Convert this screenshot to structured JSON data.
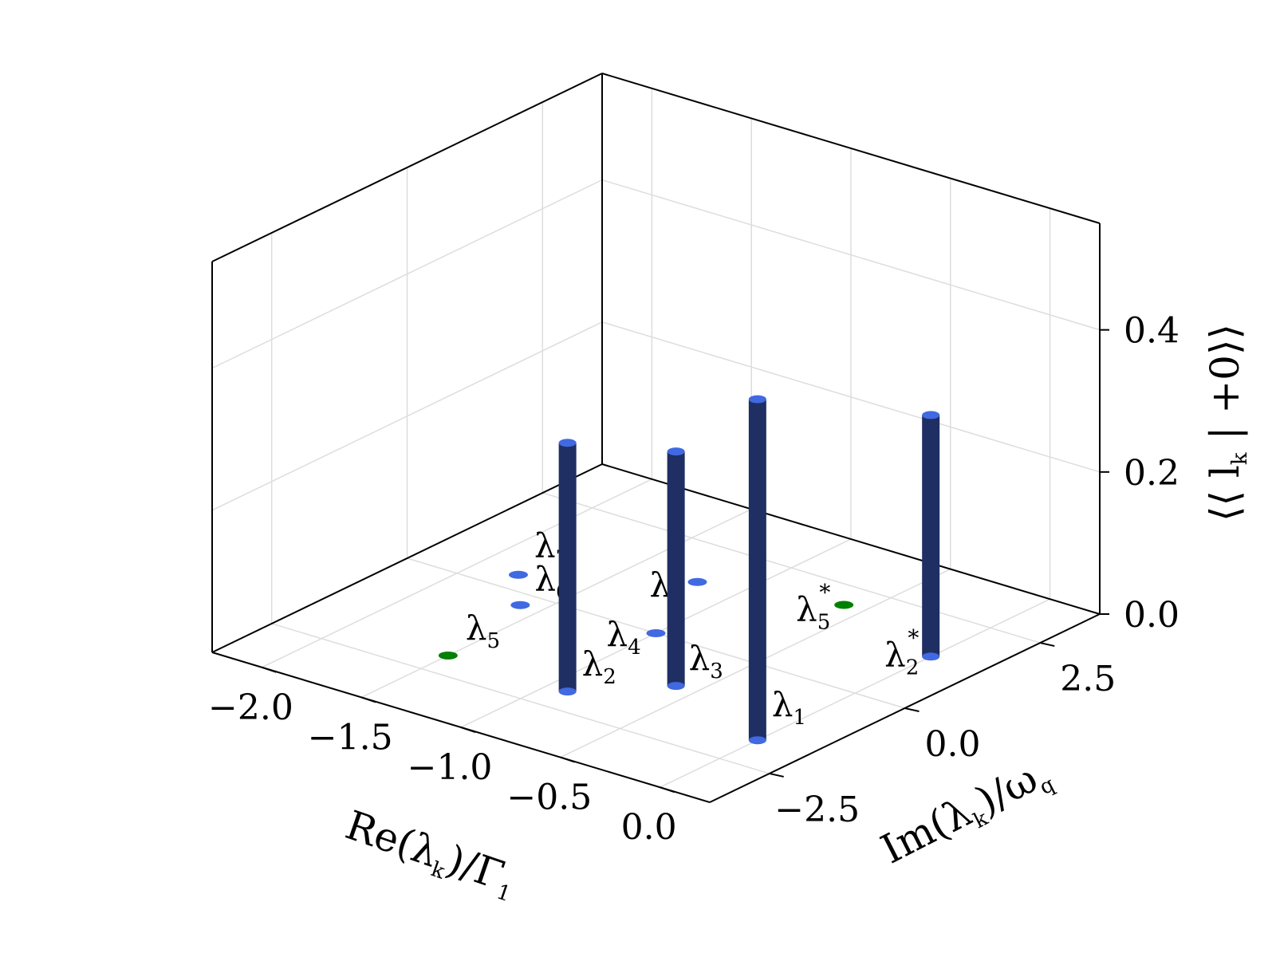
{
  "chart_data": {
    "type": "bar3d",
    "x_label": "Re(λ_k)/Γ_1",
    "y_label": "Im(λ_k)/ω_q",
    "z_label": "⟨⟨ l_k | +0⟩⟩",
    "x_ticks": [
      "−2.0",
      "−1.5",
      "−1.0",
      "−0.5",
      "0.0"
    ],
    "y_ticks": [
      "−2.5",
      "0.0",
      "2.5"
    ],
    "z_ticks": [
      "0.0",
      "0.2",
      "0.4"
    ],
    "grid": true,
    "colors": {
      "bar": "#1f2f63",
      "bar_cap": "#4169e1",
      "point_blue": "#4169e1",
      "point_green": "#008000"
    },
    "points": [
      {
        "label": "λ1",
        "name": "λ",
        "sub": "1",
        "sup": "",
        "x": 0.0,
        "y": -1.8,
        "z": 0.48,
        "color": "blue"
      },
      {
        "label": "λ2",
        "name": "λ",
        "sub": "2",
        "sup": "",
        "x": -0.9,
        "y": -2.0,
        "z": 0.35,
        "color": "blue"
      },
      {
        "label": "λ2*",
        "name": "λ",
        "sub": "2",
        "sup": "*",
        "x": 0.0,
        "y": 1.4,
        "z": 0.34,
        "color": "blue"
      },
      {
        "label": "λ3",
        "name": "λ",
        "sub": "3",
        "sup": "",
        "x": -0.6,
        "y": -1.1,
        "z": 0.33,
        "color": "blue"
      },
      {
        "label": "λ4",
        "name": "λ",
        "sub": "4",
        "sup": "",
        "x": -1.0,
        "y": 0.0,
        "z": 0.0,
        "color": "blue"
      },
      {
        "label": "λ5",
        "name": "λ",
        "sub": "5",
        "sup": "",
        "x": -1.5,
        "y": -2.0,
        "z": 0.0,
        "color": "green"
      },
      {
        "label": "λ5*",
        "name": "λ",
        "sub": "5",
        "sup": "*",
        "x": -0.6,
        "y": 2.0,
        "z": 0.0,
        "color": "green"
      },
      {
        "label": "λ6",
        "name": "λ",
        "sub": "6",
        "sup": "",
        "x": -1.6,
        "y": -0.3,
        "z": 0.0,
        "color": "blue"
      },
      {
        "label": "λ6*",
        "name": "λ",
        "sub": "6",
        "sup": "*",
        "x": -1.2,
        "y": 1.5,
        "z": 0.0,
        "color": "blue"
      },
      {
        "label": "λ7",
        "name": "λ",
        "sub": "7",
        "sup": "",
        "x": -1.8,
        "y": 0.4,
        "z": 0.0,
        "color": "blue"
      }
    ]
  }
}
